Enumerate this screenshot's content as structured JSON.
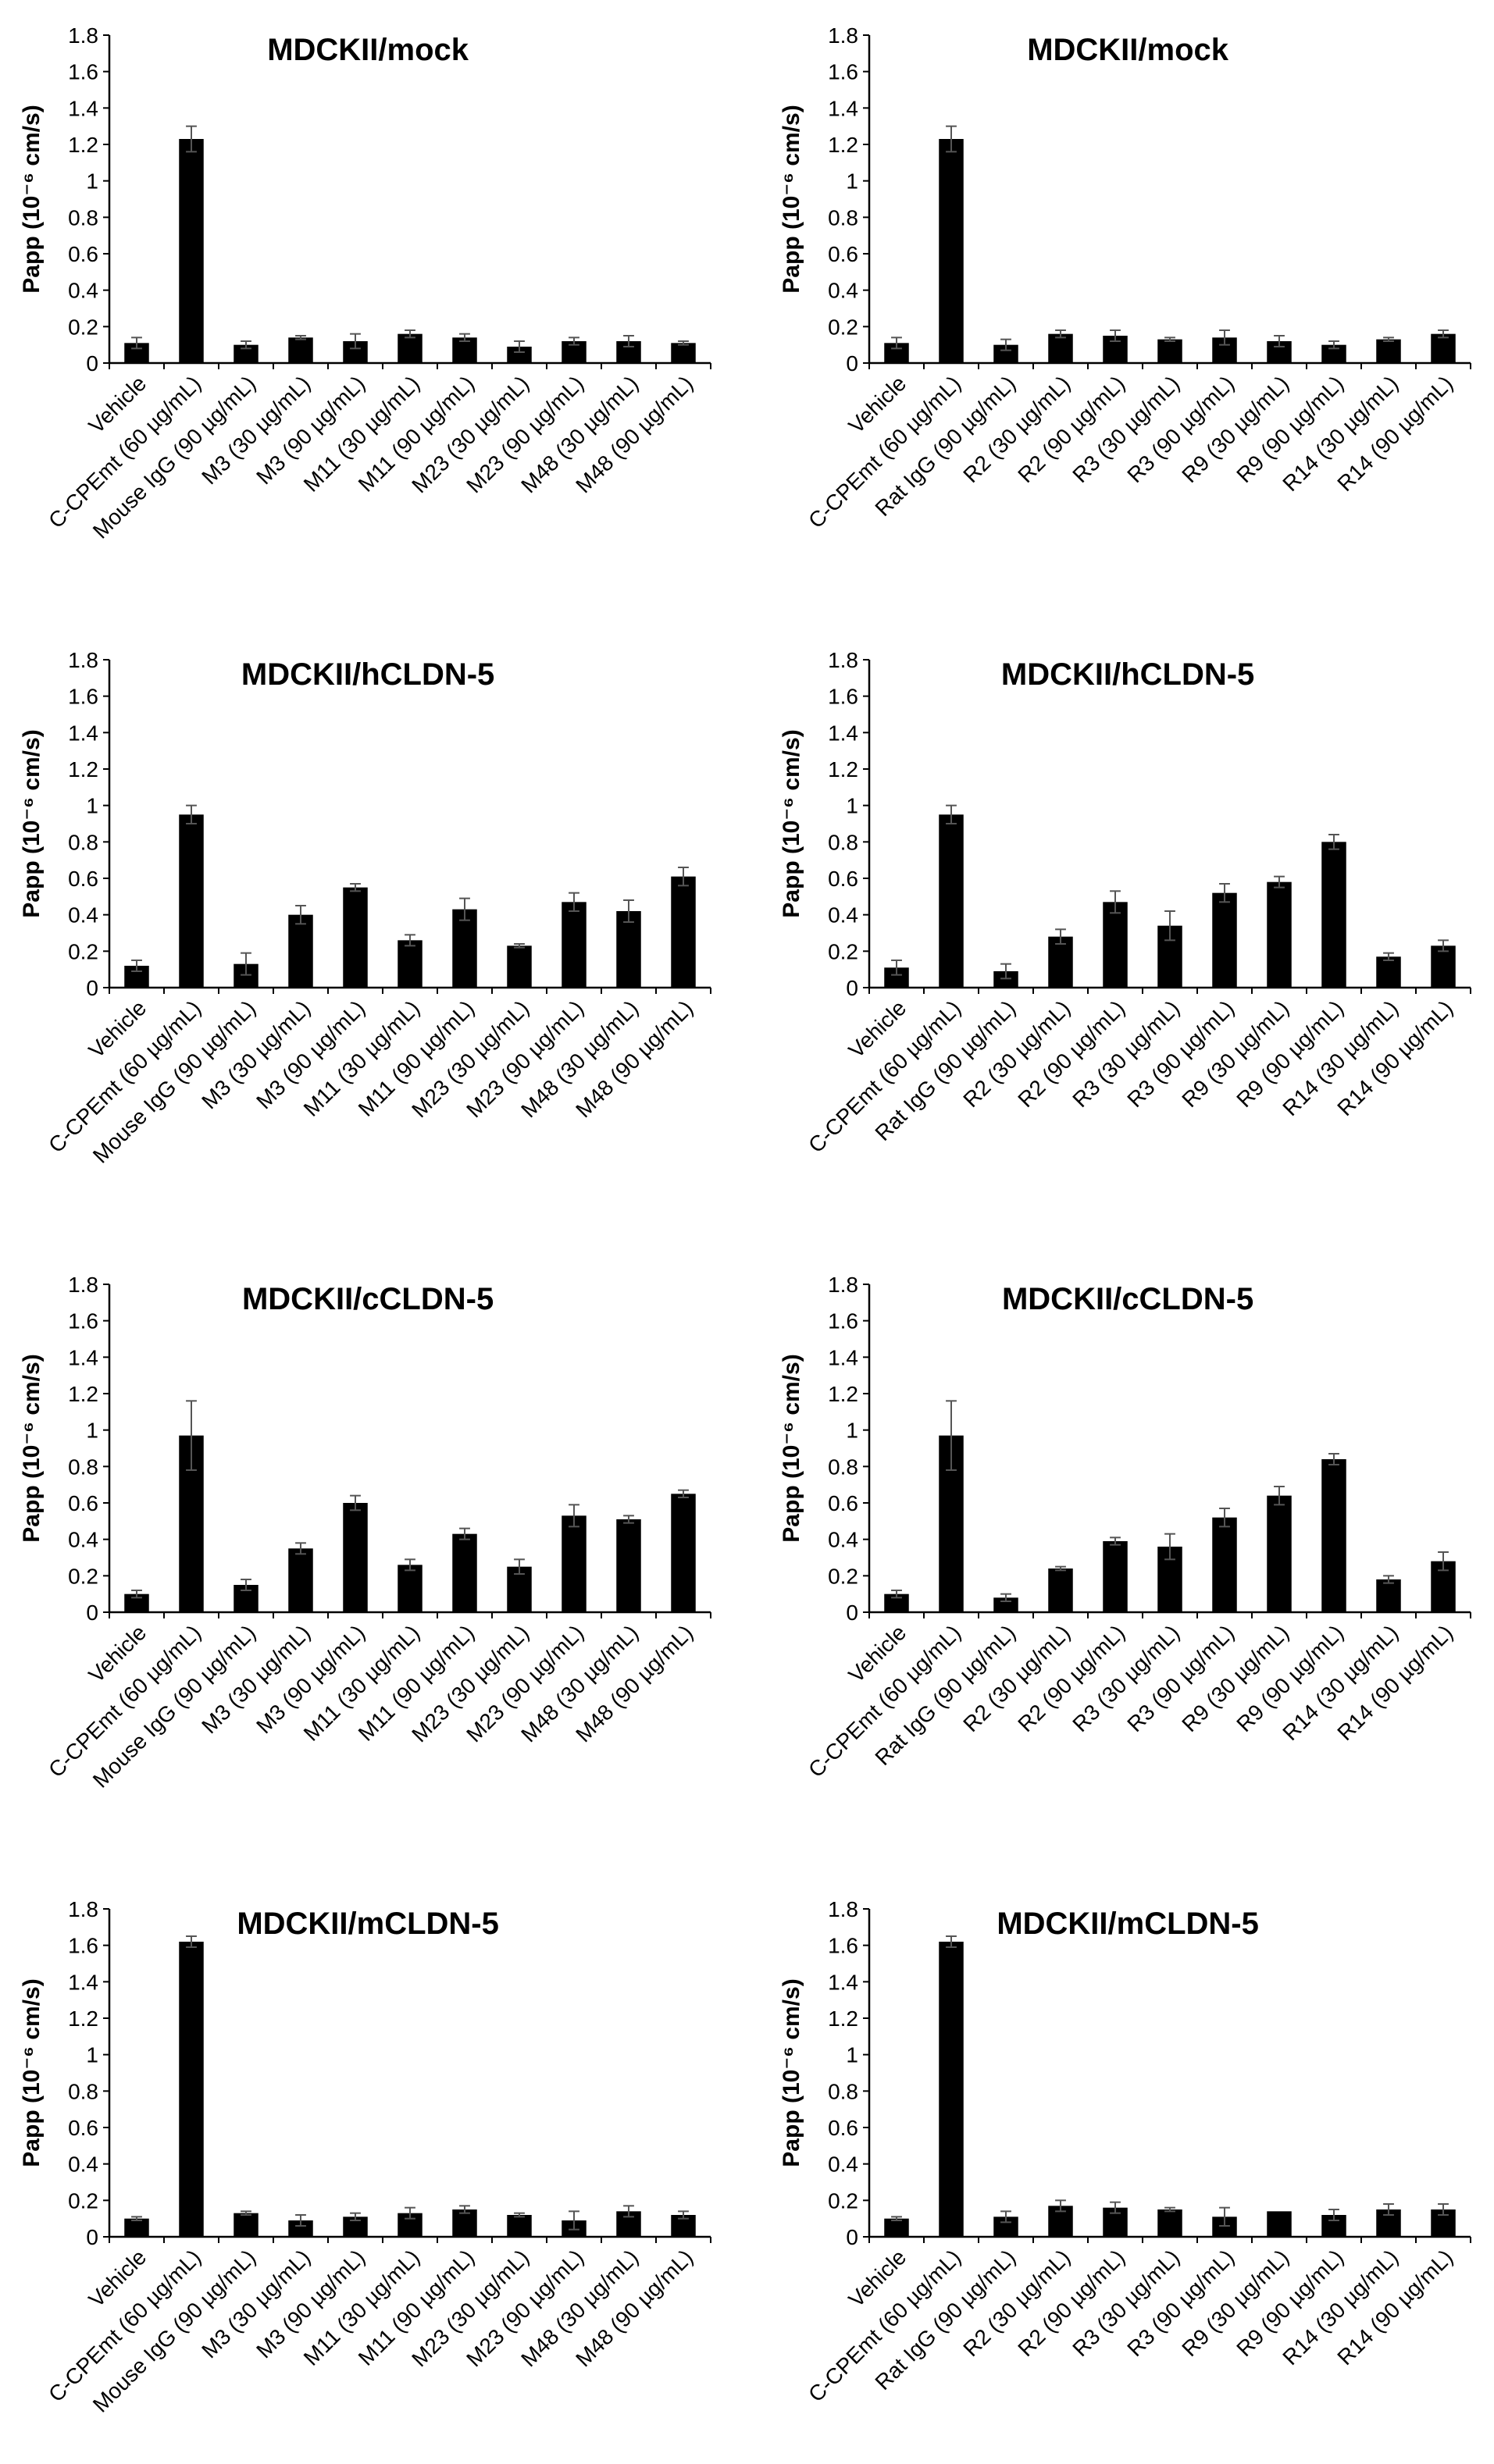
{
  "chart_data": [
    {
      "type": "bar",
      "title": "MDCKII/mock",
      "ylabel": "Papp (10⁻⁶ cm/s)",
      "xlabel": "",
      "ylim": [
        0,
        1.8
      ],
      "yticks": [
        "0",
        "0.2",
        "0.4",
        "0.6",
        "0.8",
        "1",
        "1.2",
        "1.4",
        "1.6",
        "1.8"
      ],
      "categories": [
        "Vehicle",
        "C-CPEmt (60 µg/mL)",
        "Mouse IgG (90 µg/mL)",
        "M3 (30 µg/mL)",
        "M3 (90 µg/mL)",
        "M11 (30 µg/mL)",
        "M11 (90 µg/mL)",
        "M23 (30 µg/mL)",
        "M23 (90 µg/mL)",
        "M48 (30 µg/mL)",
        "M48 (90 µg/mL)"
      ],
      "values": [
        0.11,
        1.23,
        0.1,
        0.14,
        0.12,
        0.16,
        0.14,
        0.09,
        0.12,
        0.12,
        0.11
      ],
      "errors": [
        0.03,
        0.07,
        0.02,
        0.01,
        0.04,
        0.02,
        0.02,
        0.03,
        0.02,
        0.03,
        0.01
      ],
      "bar_color": "#000000",
      "grid": false
    },
    {
      "type": "bar",
      "title": "MDCKII/mock",
      "ylabel": "Papp (10⁻⁶ cm/s)",
      "xlabel": "",
      "ylim": [
        0,
        1.8
      ],
      "yticks": [
        "0",
        "0.2",
        "0.4",
        "0.6",
        "0.8",
        "1",
        "1.2",
        "1.4",
        "1.6",
        "1.8"
      ],
      "categories": [
        "Vehicle",
        "C-CPEmt (60 µg/mL)",
        "Rat IgG (90 µg/mL)",
        "R2 (30 µg/mL)",
        "R2 (90 µg/mL)",
        "R3 (30 µg/mL)",
        "R3 (90 µg/mL)",
        "R9 (30 µg/mL)",
        "R9 (90 µg/mL)",
        "R14 (30 µg/mL)",
        "R14 (90 µg/mL)"
      ],
      "values": [
        0.11,
        1.23,
        0.1,
        0.16,
        0.15,
        0.13,
        0.14,
        0.12,
        0.1,
        0.13,
        0.16
      ],
      "errors": [
        0.03,
        0.07,
        0.03,
        0.02,
        0.03,
        0.01,
        0.04,
        0.03,
        0.02,
        0.01,
        0.02
      ],
      "bar_color": "#000000",
      "grid": false
    },
    {
      "type": "bar",
      "title": "MDCKII/hCLDN-5",
      "ylabel": "Papp (10⁻⁶ cm/s)",
      "xlabel": "",
      "ylim": [
        0,
        1.8
      ],
      "yticks": [
        "0",
        "0.2",
        "0.4",
        "0.6",
        "0.8",
        "1",
        "1.2",
        "1.4",
        "1.6",
        "1.8"
      ],
      "categories": [
        "Vehicle",
        "C-CPEmt (60 µg/mL)",
        "Mouse IgG (90 µg/mL)",
        "M3 (30 µg/mL)",
        "M3 (90 µg/mL)",
        "M11 (30 µg/mL)",
        "M11 (90 µg/mL)",
        "M23 (30 µg/mL)",
        "M23 (90 µg/mL)",
        "M48 (30 µg/mL)",
        "M48 (90 µg/mL)"
      ],
      "values": [
        0.12,
        0.95,
        0.13,
        0.4,
        0.55,
        0.26,
        0.43,
        0.23,
        0.47,
        0.42,
        0.61
      ],
      "errors": [
        0.03,
        0.05,
        0.06,
        0.05,
        0.02,
        0.03,
        0.06,
        0.01,
        0.05,
        0.06,
        0.05
      ],
      "bar_color": "#000000",
      "grid": false
    },
    {
      "type": "bar",
      "title": "MDCKII/hCLDN-5",
      "ylabel": "Papp (10⁻⁶ cm/s)",
      "xlabel": "",
      "ylim": [
        0,
        1.8
      ],
      "yticks": [
        "0",
        "0.2",
        "0.4",
        "0.6",
        "0.8",
        "1",
        "1.2",
        "1.4",
        "1.6",
        "1.8"
      ],
      "categories": [
        "Vehicle",
        "C-CPEmt (60 µg/mL)",
        "Rat IgG (90 µg/mL)",
        "R2 (30 µg/mL)",
        "R2 (90 µg/mL)",
        "R3 (30 µg/mL)",
        "R3 (90 µg/mL)",
        "R9 (30 µg/mL)",
        "R9 (90 µg/mL)",
        "R14 (30 µg/mL)",
        "R14 (90 µg/mL)"
      ],
      "values": [
        0.11,
        0.95,
        0.09,
        0.28,
        0.47,
        0.34,
        0.52,
        0.58,
        0.8,
        0.17,
        0.23
      ],
      "errors": [
        0.04,
        0.05,
        0.04,
        0.04,
        0.06,
        0.08,
        0.05,
        0.03,
        0.04,
        0.02,
        0.03
      ],
      "bar_color": "#000000",
      "grid": false
    },
    {
      "type": "bar",
      "title": "MDCKII/cCLDN-5",
      "ylabel": "Papp (10⁻⁶ cm/s)",
      "xlabel": "",
      "ylim": [
        0,
        1.8
      ],
      "yticks": [
        "0",
        "0.2",
        "0.4",
        "0.6",
        "0.8",
        "1",
        "1.2",
        "1.4",
        "1.6",
        "1.8"
      ],
      "categories": [
        "Vehicle",
        "C-CPEmt (60 µg/mL)",
        "Mouse IgG (90 µg/mL)",
        "M3 (30 µg/mL)",
        "M3 (90 µg/mL)",
        "M11 (30 µg/mL)",
        "M11 (90 µg/mL)",
        "M23 (30 µg/mL)",
        "M23 (90 µg/mL)",
        "M48 (30 µg/mL)",
        "M48 (90 µg/mL)"
      ],
      "values": [
        0.1,
        0.97,
        0.15,
        0.35,
        0.6,
        0.26,
        0.43,
        0.25,
        0.53,
        0.51,
        0.65
      ],
      "errors": [
        0.02,
        0.19,
        0.03,
        0.03,
        0.04,
        0.03,
        0.03,
        0.04,
        0.06,
        0.02,
        0.02
      ],
      "bar_color": "#000000",
      "grid": false
    },
    {
      "type": "bar",
      "title": "MDCKII/cCLDN-5",
      "ylabel": "Papp (10⁻⁶ cm/s)",
      "xlabel": "",
      "ylim": [
        0,
        1.8
      ],
      "yticks": [
        "0",
        "0.2",
        "0.4",
        "0.6",
        "0.8",
        "1",
        "1.2",
        "1.4",
        "1.6",
        "1.8"
      ],
      "categories": [
        "Vehicle",
        "C-CPEmt (60 µg/mL)",
        "Rat IgG (90 µg/mL)",
        "R2 (30 µg/mL)",
        "R2 (90 µg/mL)",
        "R3 (30 µg/mL)",
        "R3 (90 µg/mL)",
        "R9 (30 µg/mL)",
        "R9 (90 µg/mL)",
        "R14 (30 µg/mL)",
        "R14 (90 µg/mL)"
      ],
      "values": [
        0.1,
        0.97,
        0.08,
        0.24,
        0.39,
        0.36,
        0.52,
        0.64,
        0.84,
        0.18,
        0.28
      ],
      "errors": [
        0.02,
        0.19,
        0.02,
        0.01,
        0.02,
        0.07,
        0.05,
        0.05,
        0.03,
        0.02,
        0.05
      ],
      "bar_color": "#000000",
      "grid": false
    },
    {
      "type": "bar",
      "title": "MDCKII/mCLDN-5",
      "ylabel": "Papp (10⁻⁶ cm/s)",
      "xlabel": "",
      "ylim": [
        0,
        1.8
      ],
      "yticks": [
        "0",
        "0.2",
        "0.4",
        "0.6",
        "0.8",
        "1",
        "1.2",
        "1.4",
        "1.6",
        "1.8"
      ],
      "categories": [
        "Vehicle",
        "C-CPEmt (60 µg/mL)",
        "Mouse IgG (90 µg/mL)",
        "M3 (30 µg/mL)",
        "M3 (90 µg/mL)",
        "M11 (30 µg/mL)",
        "M11 (90 µg/mL)",
        "M23 (30 µg/mL)",
        "M23 (90 µg/mL)",
        "M48 (30 µg/mL)",
        "M48 (90 µg/mL)"
      ],
      "values": [
        0.1,
        1.62,
        0.13,
        0.09,
        0.11,
        0.13,
        0.15,
        0.12,
        0.09,
        0.14,
        0.12
      ],
      "errors": [
        0.01,
        0.03,
        0.01,
        0.03,
        0.02,
        0.03,
        0.02,
        0.01,
        0.05,
        0.03,
        0.02
      ],
      "bar_color": "#000000",
      "grid": false
    },
    {
      "type": "bar",
      "title": "MDCKII/mCLDN-5",
      "ylabel": "Papp (10⁻⁶ cm/s)",
      "xlabel": "",
      "ylim": [
        0,
        1.8
      ],
      "yticks": [
        "0",
        "0.2",
        "0.4",
        "0.6",
        "0.8",
        "1",
        "1.2",
        "1.4",
        "1.6",
        "1.8"
      ],
      "categories": [
        "Vehicle",
        "C-CPEmt (60 µg/mL)",
        "Rat IgG (90 µg/mL)",
        "R2 (30 µg/mL)",
        "R2 (90 µg/mL)",
        "R3 (30 µg/mL)",
        "R3 (90 µg/mL)",
        "R9 (30 µg/mL)",
        "R9 (90 µg/mL)",
        "R14 (30 µg/mL)",
        "R14 (90 µg/mL)"
      ],
      "values": [
        0.1,
        1.62,
        0.11,
        0.17,
        0.16,
        0.15,
        0.11,
        0.14,
        0.12,
        0.15,
        0.15
      ],
      "errors": [
        0.01,
        0.03,
        0.03,
        0.03,
        0.03,
        0.01,
        0.05,
        0.0,
        0.03,
        0.03,
        0.03
      ],
      "bar_color": "#000000",
      "grid": false
    }
  ]
}
